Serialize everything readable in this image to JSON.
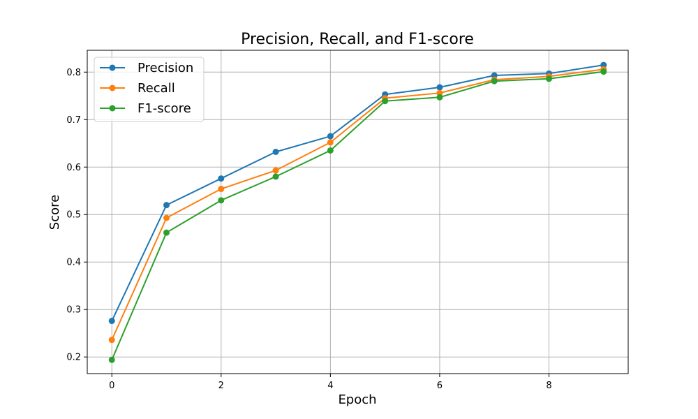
{
  "chart_data": {
    "type": "line",
    "title": "Precision, Recall, and F1-score",
    "xlabel": "Epoch",
    "ylabel": "Score",
    "x": [
      0,
      1,
      2,
      3,
      4,
      5,
      6,
      7,
      8,
      9
    ],
    "xlim": [
      -0.45,
      9.45
    ],
    "ylim": [
      0.165,
      0.846
    ],
    "xticks": [
      0,
      2,
      4,
      6,
      8
    ],
    "yticks": [
      0.2,
      0.3,
      0.4,
      0.5,
      0.6,
      0.7,
      0.8
    ],
    "xtick_labels": [
      "0",
      "2",
      "4",
      "6",
      "8"
    ],
    "ytick_labels": [
      "0.2",
      "0.3",
      "0.4",
      "0.5",
      "0.6",
      "0.7",
      "0.8"
    ],
    "grid": true,
    "legend_position": "upper-left",
    "series": [
      {
        "name": "Precision",
        "color": "#1f77b4",
        "marker": "circle",
        "values": [
          0.276,
          0.52,
          0.576,
          0.632,
          0.665,
          0.753,
          0.768,
          0.793,
          0.797,
          0.815
        ]
      },
      {
        "name": "Recall",
        "color": "#ff7f0e",
        "marker": "circle",
        "values": [
          0.236,
          0.493,
          0.554,
          0.593,
          0.652,
          0.745,
          0.756,
          0.784,
          0.791,
          0.806
        ]
      },
      {
        "name": "F1-score",
        "color": "#2ca02c",
        "marker": "circle",
        "values": [
          0.194,
          0.462,
          0.53,
          0.58,
          0.635,
          0.739,
          0.747,
          0.781,
          0.786,
          0.801
        ]
      }
    ]
  }
}
